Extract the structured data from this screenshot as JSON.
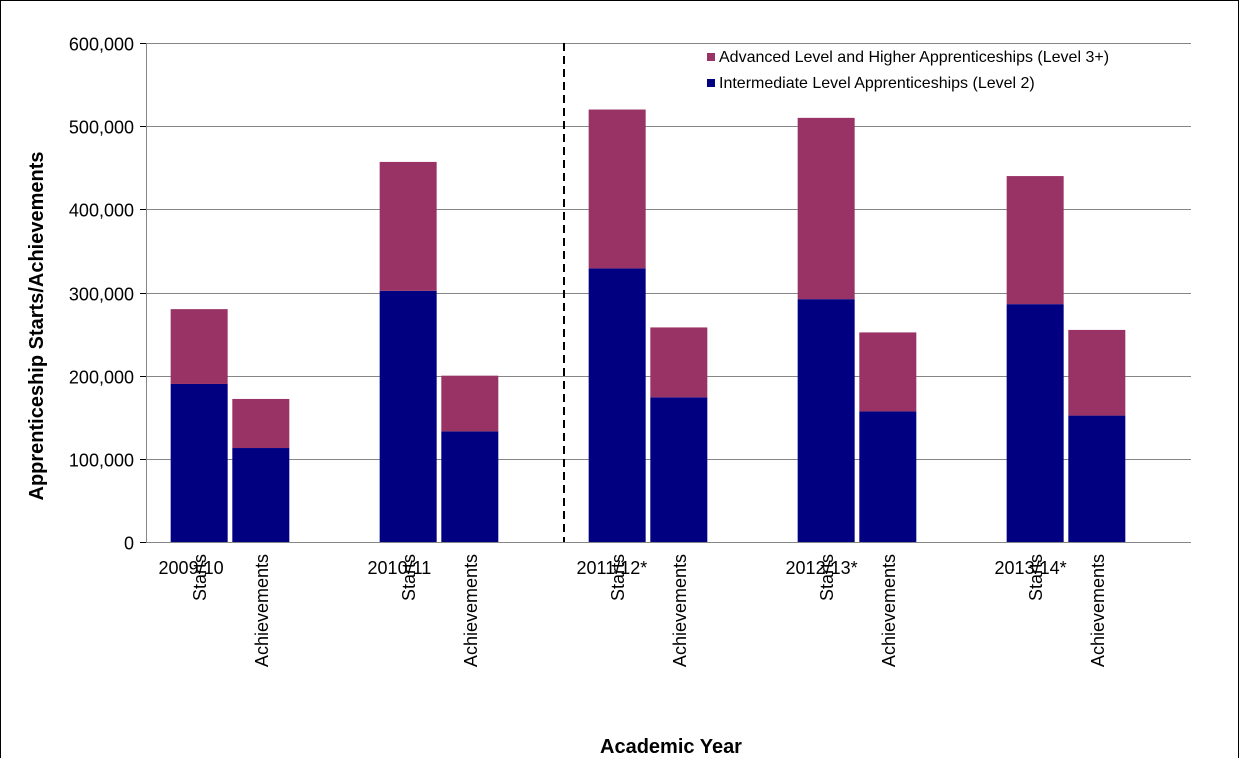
{
  "chart_data": {
    "type": "bar",
    "stacked": true,
    "xlabel": "Academic Year",
    "ylabel": "Apprenticeship Starts/Achievements",
    "ylim": [
      0,
      600000
    ],
    "yticks": [
      0,
      100000,
      200000,
      300000,
      400000,
      500000,
      600000
    ],
    "ytick_labels": [
      "0",
      "100,000",
      "200,000",
      "300,000",
      "400,000",
      "500,000",
      "600,000"
    ],
    "grid": true,
    "legend_position": "top-right",
    "groups": [
      {
        "label": "2009/10",
        "categories": [
          "Starts",
          "Achievements"
        ]
      },
      {
        "label": "2010/11",
        "categories": [
          "Starts",
          "Achievements"
        ]
      },
      {
        "label": "2011/12*",
        "categories": [
          "Starts",
          "Achievements"
        ]
      },
      {
        "label": "2012/13*",
        "categories": [
          "Starts",
          "Achievements"
        ]
      },
      {
        "label": "2013/14*",
        "categories": [
          "Starts",
          "Achievements"
        ]
      }
    ],
    "series": [
      {
        "name": "Intermediate Level Apprenticeships (Level 2)",
        "color": "#000080",
        "values": [
          190000,
          113000,
          302000,
          133000,
          329000,
          174000,
          292000,
          157000,
          286000,
          152000
        ]
      },
      {
        "name": "Advanced Level and Higher Apprenticeships (Level 3+)",
        "color": "#993366",
        "values": [
          90000,
          59000,
          155000,
          67000,
          191000,
          84000,
          218000,
          95000,
          154000,
          103000
        ]
      }
    ],
    "legend_order": [
      1,
      0
    ],
    "divider_after_group": 1
  }
}
